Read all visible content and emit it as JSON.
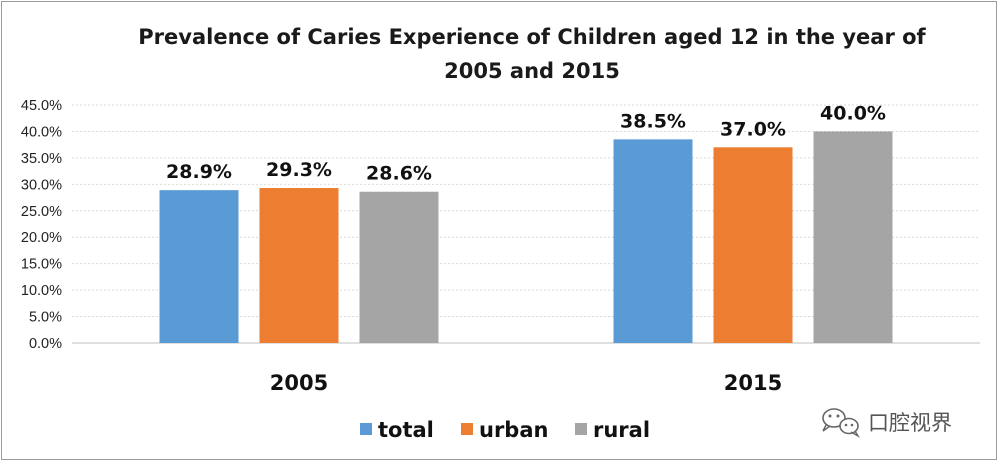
{
  "chart_data": {
    "type": "bar",
    "title_lines": [
      "Prevalence of Caries Experience of Children aged 12 in the year of",
      "2005 and 2015"
    ],
    "categories": [
      "2005",
      "2015"
    ],
    "series": [
      {
        "name": "total",
        "color": "#5b9bd5",
        "values": [
          28.9,
          38.5
        ],
        "labels": [
          "28.9%",
          "38.5%"
        ]
      },
      {
        "name": "urban",
        "color": "#ed7d31",
        "values": [
          29.3,
          37.0
        ],
        "labels": [
          "29.3%",
          "37.0%"
        ]
      },
      {
        "name": "rural",
        "color": "#a5a5a5",
        "values": [
          28.6,
          40.0
        ],
        "labels": [
          "28.6%",
          "40.0%"
        ]
      }
    ],
    "ylim": [
      0,
      45
    ],
    "yticks": [
      "0.0%",
      "5.0%",
      "10.0%",
      "15.0%",
      "20.0%",
      "25.0%",
      "30.0%",
      "35.0%",
      "40.0%",
      "45.0%"
    ],
    "grid": true,
    "legend_position": "bottom",
    "xlabel": "",
    "ylabel": ""
  },
  "watermark": {
    "text": "口腔视界",
    "icon": "wechat-icon"
  }
}
